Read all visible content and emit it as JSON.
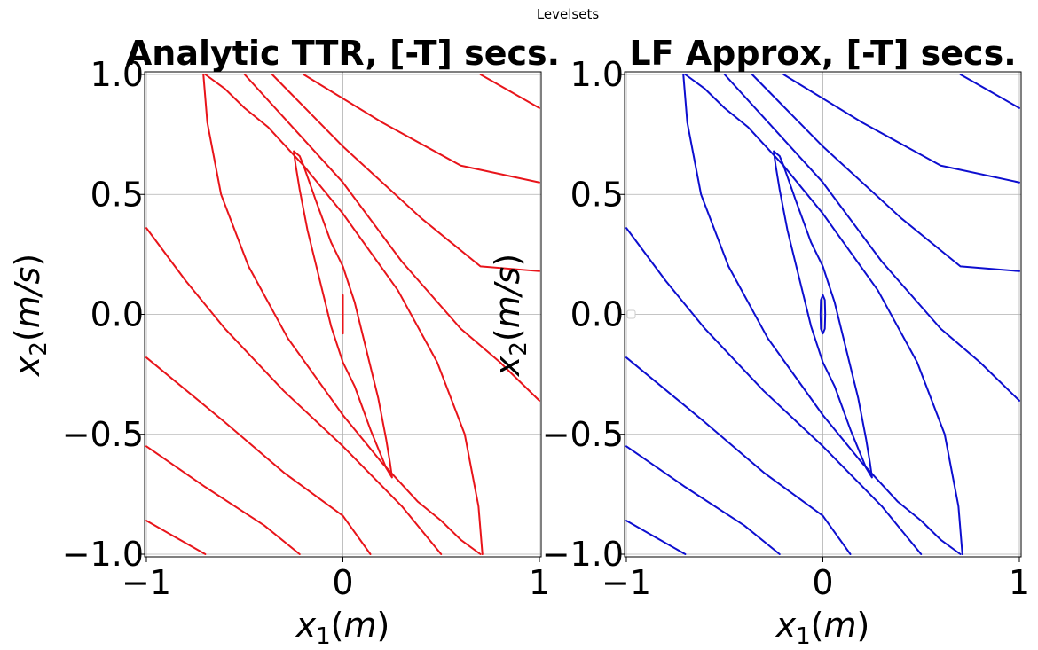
{
  "figure": {
    "suptitle": "Levelsets"
  },
  "chart_data": [
    {
      "type": "line",
      "title": "Analytic TTR, [-T] secs.",
      "xlabel": "x1(m)",
      "ylabel": "x2(m/s)",
      "xlim": [
        -1,
        1
      ],
      "ylim": [
        -1,
        1
      ],
      "xticks": [
        -1,
        0,
        1
      ],
      "yticks": [
        -1.0,
        -0.5,
        0.0,
        0.5,
        1.0
      ],
      "xtick_labels": [
        "−1",
        "0",
        "1"
      ],
      "ytick_labels": [
        "−1.0",
        "−0.5",
        "0.0",
        "0.5",
        "1.0"
      ],
      "grid": true,
      "color": "#e8141a",
      "series": [
        {
          "points": [
            [
              0,
              -0.08
            ],
            [
              0,
              0.08
            ]
          ]
        },
        {
          "points": [
            [
              -0.25,
              0.68
            ],
            [
              -0.22,
              0.66
            ],
            [
              -0.2,
              0.62
            ],
            [
              -0.14,
              0.48
            ],
            [
              -0.06,
              0.3
            ],
            [
              0,
              0.2
            ],
            [
              0.06,
              0.05
            ],
            [
              0.12,
              -0.15
            ],
            [
              0.18,
              -0.35
            ],
            [
              0.22,
              -0.52
            ],
            [
              0.24,
              -0.62
            ],
            [
              0.25,
              -0.68
            ],
            [
              0.22,
              -0.64
            ],
            [
              0.2,
              -0.6
            ],
            [
              0.14,
              -0.48
            ],
            [
              0.06,
              -0.3
            ],
            [
              0,
              -0.2
            ],
            [
              -0.06,
              -0.05
            ],
            [
              -0.12,
              0.15
            ],
            [
              -0.18,
              0.35
            ],
            [
              -0.22,
              0.52
            ],
            [
              -0.24,
              0.62
            ],
            [
              -0.25,
              0.68
            ]
          ]
        },
        {
          "points": [
            [
              -0.71,
              1.0
            ],
            [
              -0.69,
              0.8
            ],
            [
              -0.62,
              0.5
            ],
            [
              -0.48,
              0.2
            ],
            [
              -0.28,
              -0.1
            ],
            [
              0.0,
              -0.42
            ],
            [
              0.2,
              -0.62
            ],
            [
              0.38,
              -0.78
            ],
            [
              0.5,
              -0.86
            ],
            [
              0.6,
              -0.94
            ],
            [
              0.7,
              -1.0
            ]
          ]
        },
        {
          "points": [
            [
              -0.7,
              1.0
            ],
            [
              -0.6,
              0.94
            ],
            [
              -0.5,
              0.86
            ],
            [
              -0.38,
              0.78
            ],
            [
              -0.2,
              0.62
            ],
            [
              0.0,
              0.42
            ],
            [
              0.28,
              0.1
            ],
            [
              0.48,
              -0.2
            ],
            [
              0.62,
              -0.5
            ],
            [
              0.69,
              -0.8
            ],
            [
              0.71,
              -1.0
            ]
          ]
        },
        {
          "points": [
            [
              -0.5,
              1.0
            ],
            [
              -0.3,
              0.82
            ],
            [
              0.0,
              0.55
            ],
            [
              0.3,
              0.22
            ],
            [
              0.6,
              -0.06
            ],
            [
              0.8,
              -0.2
            ],
            [
              1.0,
              -0.36
            ]
          ]
        },
        {
          "points": [
            [
              -0.36,
              1.0
            ],
            [
              0.0,
              0.7
            ],
            [
              0.4,
              0.4
            ],
            [
              0.7,
              0.2
            ],
            [
              1.0,
              0.18
            ]
          ]
        },
        {
          "points": [
            [
              -0.2,
              1.0
            ],
            [
              0.2,
              0.8
            ],
            [
              0.6,
              0.62
            ],
            [
              1.0,
              0.55
            ]
          ]
        },
        {
          "points": [
            [
              0.7,
              1.0
            ],
            [
              0.85,
              0.93
            ],
            [
              1.0,
              0.86
            ]
          ]
        },
        {
          "points": [
            [
              -1.0,
              0.36
            ],
            [
              -0.8,
              0.14
            ],
            [
              -0.6,
              -0.06
            ],
            [
              -0.3,
              -0.32
            ],
            [
              0.0,
              -0.55
            ],
            [
              0.3,
              -0.8
            ],
            [
              0.5,
              -1.0
            ]
          ]
        },
        {
          "points": [
            [
              -1.0,
              -0.18
            ],
            [
              -0.6,
              -0.45
            ],
            [
              -0.3,
              -0.66
            ],
            [
              0.0,
              -0.84
            ],
            [
              0.14,
              -1.0
            ]
          ]
        },
        {
          "points": [
            [
              -1.0,
              -0.55
            ],
            [
              -0.7,
              -0.72
            ],
            [
              -0.4,
              -0.88
            ],
            [
              -0.22,
              -1.0
            ]
          ]
        },
        {
          "points": [
            [
              -1.0,
              -0.86
            ],
            [
              -0.85,
              -0.93
            ],
            [
              -0.7,
              -1.0
            ]
          ]
        }
      ]
    },
    {
      "type": "line",
      "title": "LF Approx, [-T] secs.",
      "xlabel": "x1(m)",
      "ylabel": "x2(m/s)",
      "xlim": [
        -1,
        1
      ],
      "ylim": [
        -1,
        1
      ],
      "xticks": [
        -1,
        0,
        1
      ],
      "yticks": [
        -1.0,
        -0.5,
        0.0,
        0.5,
        1.0
      ],
      "xtick_labels": [
        "−1",
        "0",
        "1"
      ],
      "ytick_labels": [
        "−1.0",
        "−0.5",
        "0.0",
        "0.5",
        "1.0"
      ],
      "grid": true,
      "color": "#0d0ecf",
      "legend": "left-center",
      "series": [
        {
          "points": [
            [
              0.0,
              0.08
            ],
            [
              0.01,
              0.06
            ],
            [
              0.012,
              0.0
            ],
            [
              0.01,
              -0.06
            ],
            [
              0.0,
              -0.08
            ],
            [
              -0.01,
              -0.06
            ],
            [
              -0.012,
              0.0
            ],
            [
              -0.01,
              0.06
            ],
            [
              0.0,
              0.08
            ]
          ]
        },
        {
          "points": [
            [
              -0.25,
              0.68
            ],
            [
              -0.22,
              0.66
            ],
            [
              -0.2,
              0.62
            ],
            [
              -0.14,
              0.48
            ],
            [
              -0.06,
              0.3
            ],
            [
              0,
              0.2
            ],
            [
              0.06,
              0.05
            ],
            [
              0.12,
              -0.15
            ],
            [
              0.18,
              -0.35
            ],
            [
              0.22,
              -0.52
            ],
            [
              0.24,
              -0.62
            ],
            [
              0.25,
              -0.68
            ],
            [
              0.22,
              -0.64
            ],
            [
              0.2,
              -0.6
            ],
            [
              0.14,
              -0.48
            ],
            [
              0.06,
              -0.3
            ],
            [
              0,
              -0.2
            ],
            [
              -0.06,
              -0.05
            ],
            [
              -0.12,
              0.15
            ],
            [
              -0.18,
              0.35
            ],
            [
              -0.22,
              0.52
            ],
            [
              -0.24,
              0.62
            ],
            [
              -0.25,
              0.68
            ]
          ]
        },
        {
          "points": [
            [
              -0.71,
              1.0
            ],
            [
              -0.69,
              0.8
            ],
            [
              -0.62,
              0.5
            ],
            [
              -0.48,
              0.2
            ],
            [
              -0.28,
              -0.1
            ],
            [
              0.0,
              -0.42
            ],
            [
              0.2,
              -0.62
            ],
            [
              0.38,
              -0.78
            ],
            [
              0.5,
              -0.86
            ],
            [
              0.6,
              -0.94
            ],
            [
              0.7,
              -1.0
            ]
          ]
        },
        {
          "points": [
            [
              -0.7,
              1.0
            ],
            [
              -0.6,
              0.94
            ],
            [
              -0.5,
              0.86
            ],
            [
              -0.38,
              0.78
            ],
            [
              -0.2,
              0.62
            ],
            [
              0.0,
              0.42
            ],
            [
              0.28,
              0.1
            ],
            [
              0.48,
              -0.2
            ],
            [
              0.62,
              -0.5
            ],
            [
              0.69,
              -0.8
            ],
            [
              0.71,
              -1.0
            ]
          ]
        },
        {
          "points": [
            [
              -0.5,
              1.0
            ],
            [
              -0.3,
              0.82
            ],
            [
              0.0,
              0.55
            ],
            [
              0.3,
              0.22
            ],
            [
              0.6,
              -0.06
            ],
            [
              0.8,
              -0.2
            ],
            [
              1.0,
              -0.36
            ]
          ]
        },
        {
          "points": [
            [
              -0.36,
              1.0
            ],
            [
              0.0,
              0.7
            ],
            [
              0.4,
              0.4
            ],
            [
              0.7,
              0.2
            ],
            [
              1.0,
              0.18
            ]
          ]
        },
        {
          "points": [
            [
              -0.2,
              1.0
            ],
            [
              0.2,
              0.8
            ],
            [
              0.6,
              0.62
            ],
            [
              1.0,
              0.55
            ]
          ]
        },
        {
          "points": [
            [
              0.7,
              1.0
            ],
            [
              0.85,
              0.93
            ],
            [
              1.0,
              0.86
            ]
          ]
        },
        {
          "points": [
            [
              -1.0,
              0.36
            ],
            [
              -0.8,
              0.14
            ],
            [
              -0.6,
              -0.06
            ],
            [
              -0.3,
              -0.32
            ],
            [
              0.0,
              -0.55
            ],
            [
              0.3,
              -0.8
            ],
            [
              0.5,
              -1.0
            ]
          ]
        },
        {
          "points": [
            [
              -1.0,
              -0.18
            ],
            [
              -0.6,
              -0.45
            ],
            [
              -0.3,
              -0.66
            ],
            [
              0.0,
              -0.84
            ],
            [
              0.14,
              -1.0
            ]
          ]
        },
        {
          "points": [
            [
              -1.0,
              -0.55
            ],
            [
              -0.7,
              -0.72
            ],
            [
              -0.4,
              -0.88
            ],
            [
              -0.22,
              -1.0
            ]
          ]
        },
        {
          "points": [
            [
              -1.0,
              -0.86
            ],
            [
              -0.85,
              -0.93
            ],
            [
              -0.7,
              -1.0
            ]
          ]
        }
      ]
    }
  ]
}
